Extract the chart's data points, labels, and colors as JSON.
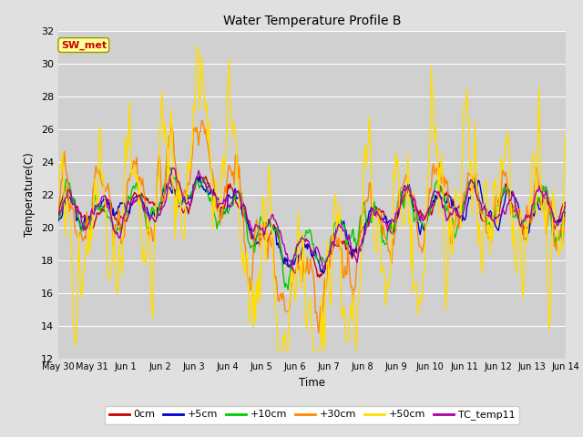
{
  "title": "Water Temperature Profile B",
  "xlabel": "Time",
  "ylabel": "Temperature(C)",
  "ylim": [
    12,
    32
  ],
  "yticks": [
    12,
    14,
    16,
    18,
    20,
    22,
    24,
    26,
    28,
    30,
    32
  ],
  "series_labels": [
    "0cm",
    "+5cm",
    "+10cm",
    "+30cm",
    "+50cm",
    "TC_temp11"
  ],
  "series_colors": [
    "#cc0000",
    "#0000cc",
    "#00cc00",
    "#ff8800",
    "#ffdd00",
    "#aa00aa"
  ],
  "series_linewidths": [
    1.0,
    1.0,
    1.0,
    1.0,
    1.0,
    1.0
  ],
  "bg_color": "#e0e0e0",
  "plot_bg_color": "#d0d0d0",
  "grid_color": "#ffffff",
  "annotation_text": "SW_met",
  "annotation_color": "#cc0000",
  "annotation_bg": "#ffff99",
  "tick_labels": [
    "May 30",
    "May 31",
    "Jun 1",
    "Jun 2",
    "Jun 3",
    "Jun 4",
    "Jun 5",
    "Jun 6",
    "Jun 7",
    "Jun 8",
    "Jun 9",
    "Jun 10",
    "Jun 11",
    "Jun 12",
    "Jun 13",
    "Jun 14"
  ],
  "n_points": 500
}
